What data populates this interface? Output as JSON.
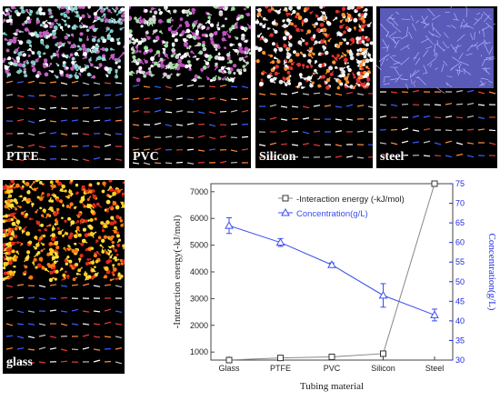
{
  "panels": [
    {
      "label": "PTFE",
      "style": "ptfe"
    },
    {
      "label": "PVC",
      "style": "pvc"
    },
    {
      "label": "Silicon",
      "style": "silicon"
    },
    {
      "label": "steel",
      "style": "steel"
    },
    {
      "label": "glass",
      "style": "glass"
    }
  ],
  "colors": {
    "interaction": "#333333",
    "concentration": "#3b4cf0",
    "right_axis": "#1f2ae0"
  },
  "chart_data": {
    "type": "line",
    "categories": [
      "Glass",
      "PTFE",
      "PVC",
      "Silicon",
      "Steel"
    ],
    "xlabel": "Tubing material",
    "series": [
      {
        "name": "-Interaction energy (-kJ/mol)",
        "axis": "left",
        "marker": "square",
        "values": [
          480,
          780,
          820,
          940,
          7350
        ]
      },
      {
        "name": "Concentration(g/L)",
        "axis": "right",
        "marker": "triangle",
        "values": [
          64.3,
          60,
          54.3,
          46.5,
          41.5
        ],
        "errors": [
          2,
          1,
          0.5,
          3,
          1.5
        ]
      }
    ],
    "yleft": {
      "label": "-Interaction energy(-kJ/mol)",
      "range": [
        700,
        7300
      ],
      "ticks": [
        "1000",
        "2000",
        "3000",
        "4000",
        "5000",
        "6000",
        "7000"
      ]
    },
    "yright": {
      "label": "Concentration(g/L)",
      "range": [
        30,
        75
      ],
      "ticks": [
        "30",
        "35",
        "40",
        "45",
        "50",
        "55",
        "60",
        "65",
        "70",
        "75"
      ]
    },
    "legend_position": "top-right"
  }
}
